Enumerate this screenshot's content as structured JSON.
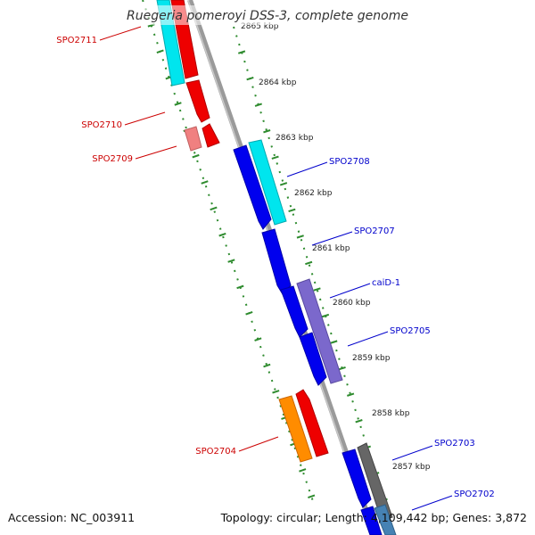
{
  "title": "Ruegeria pomeroyi DSS-3, complete genome",
  "footer": {
    "accession": "Accession: NC_003911",
    "summary": "Topology: circular; Length: 4,109,442 bp; Genes: 3,872"
  },
  "colors": {
    "backbone": "#9a9a9a",
    "ticks": "#2e8b2e",
    "forward_label": "#cc0000",
    "reverse_label": "#0000cc",
    "red": "#ee0000",
    "cyan": "#00e5ee",
    "blue": "#0000ee",
    "purple": "#7b68cc",
    "orange": "#ff8c00",
    "gray": "#666666",
    "steel": "#4682b4"
  },
  "ticks": [
    "2865 kbp",
    "2864 kbp",
    "2863 kbp",
    "2862 kbp",
    "2861 kbp",
    "2860 kbp",
    "2859 kbp",
    "2858 kbp",
    "2857 kbp"
  ],
  "genes": [
    "SPO2711",
    "SPO2710",
    "SPO2709",
    "SPO2708",
    "SPO2707",
    "caiD-1",
    "SPO2705",
    "SPO2704",
    "SPO2703",
    "SPO2702"
  ]
}
